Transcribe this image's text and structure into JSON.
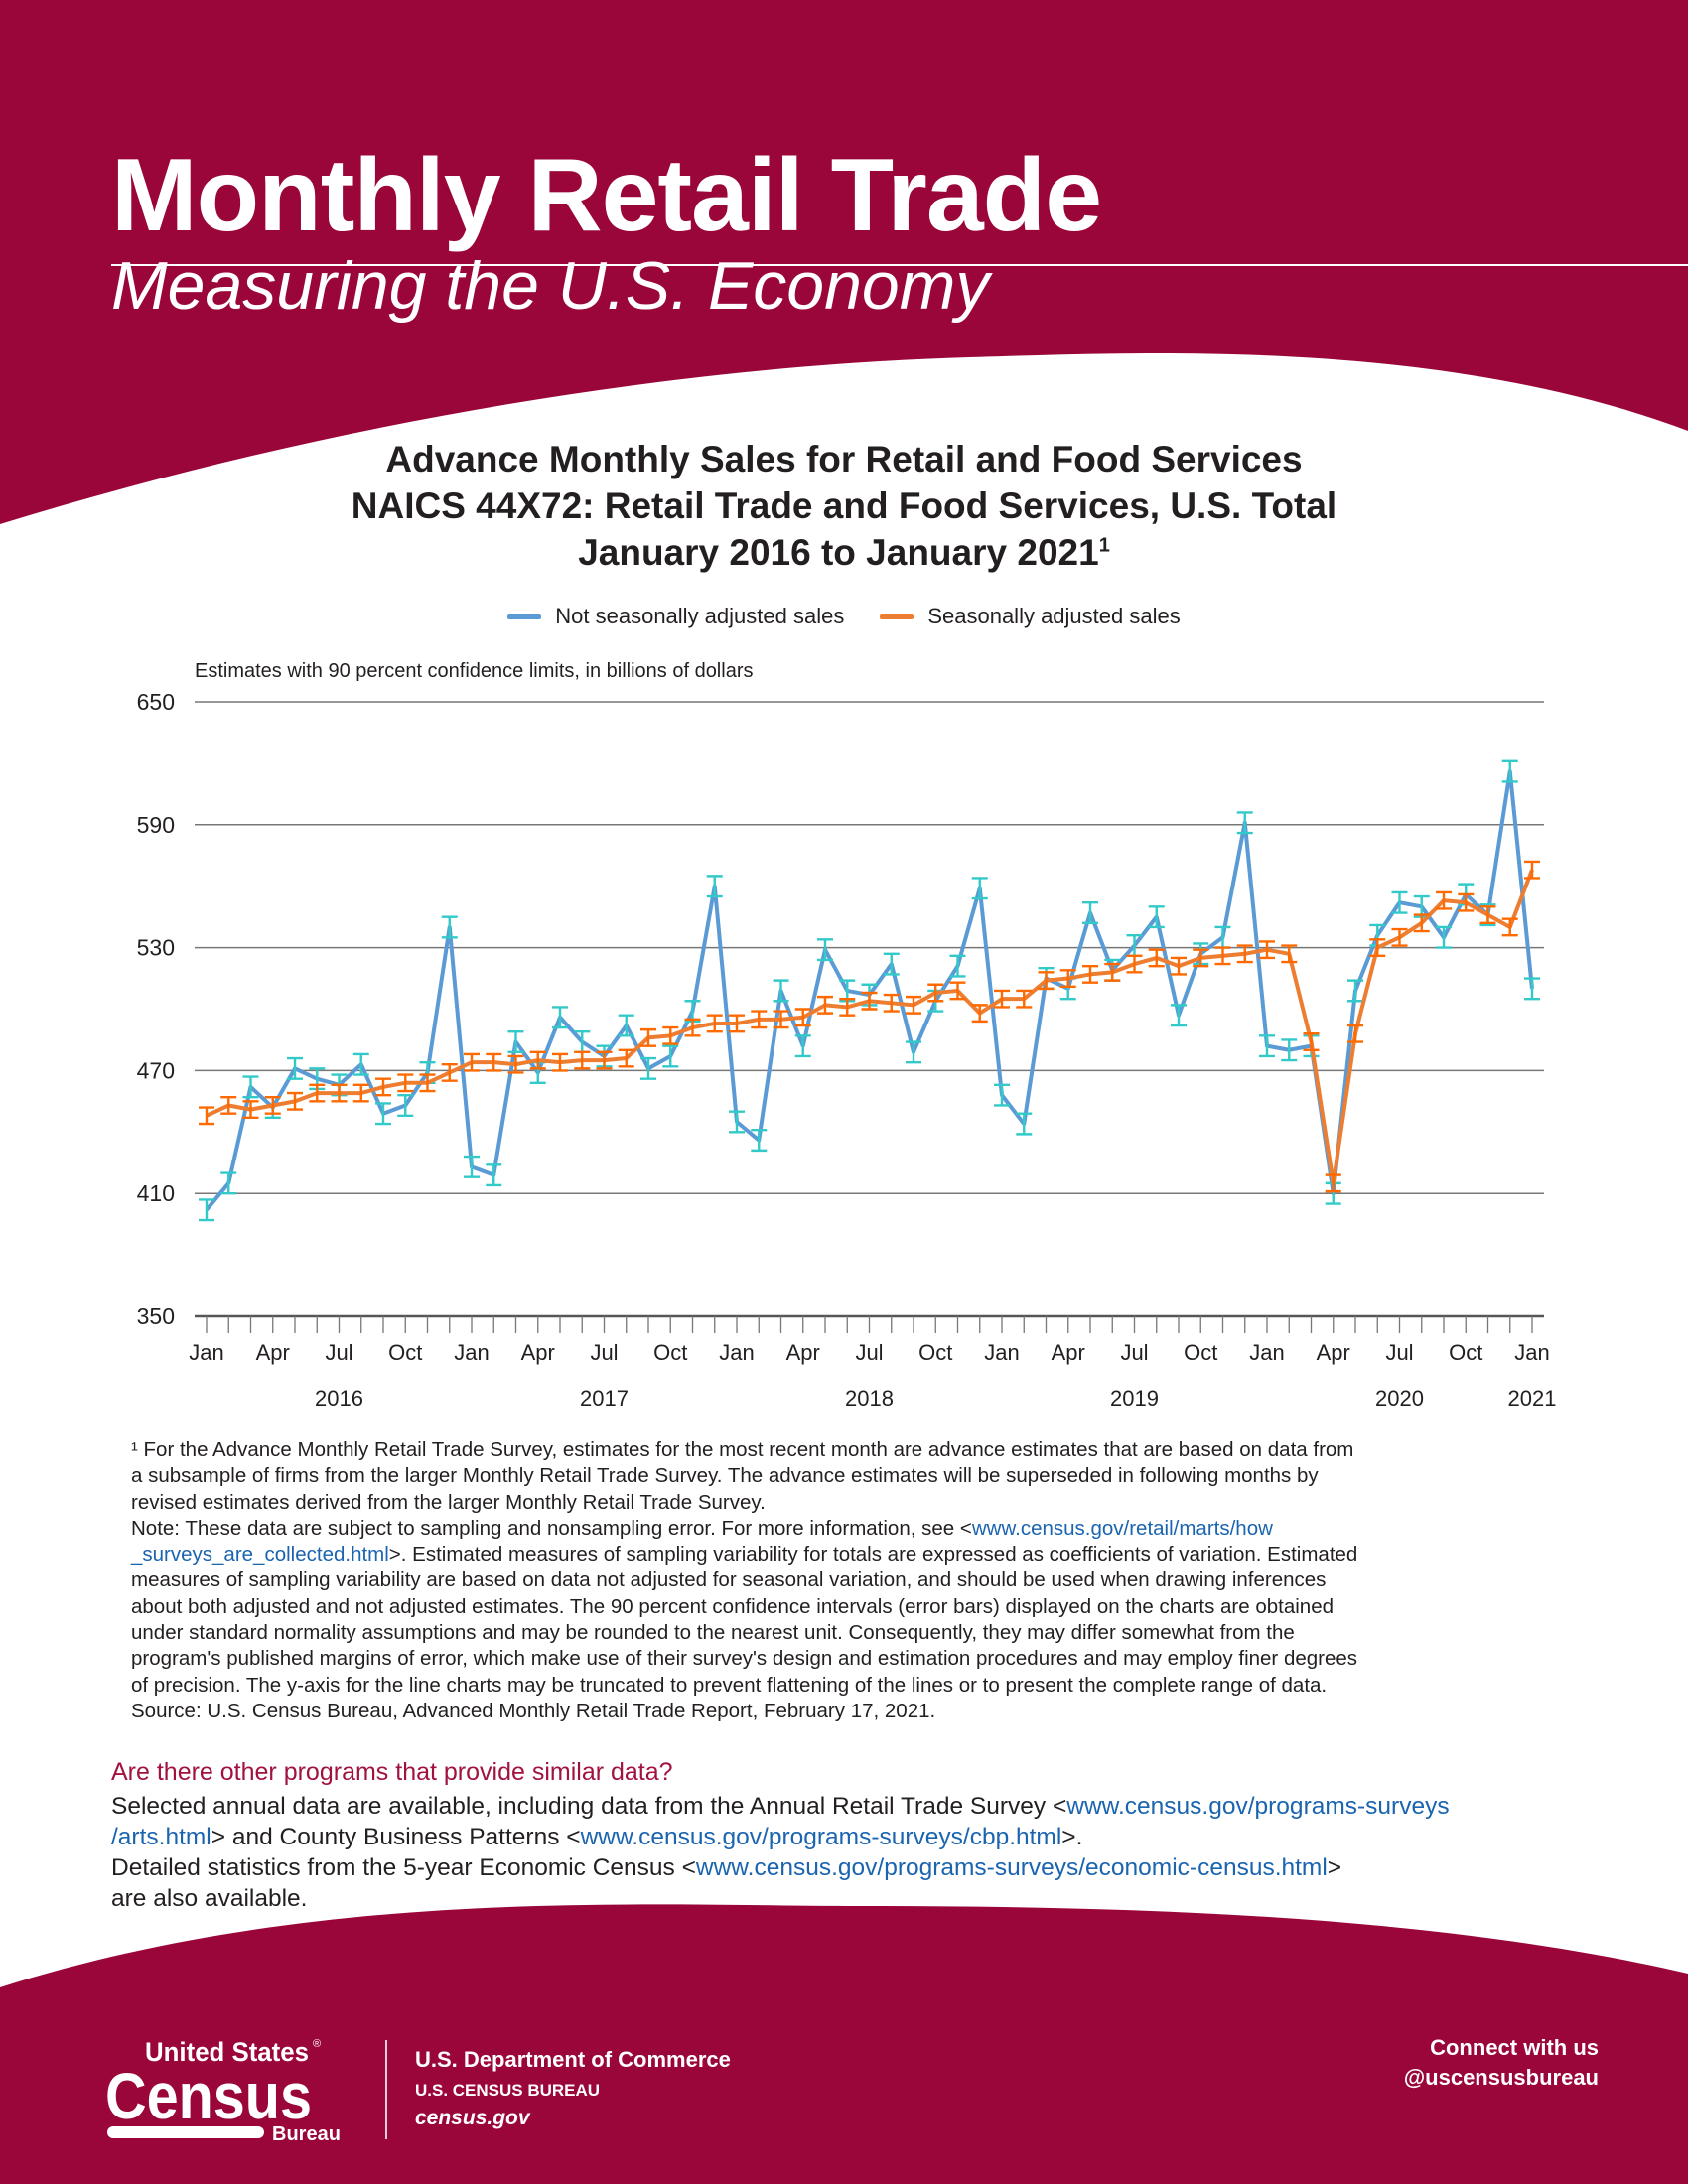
{
  "colors": {
    "brand_red": "#9B063A",
    "nsa_line": "#5B9BD5",
    "nsa_error": "#33C9C9",
    "sa_line": "#ED7D31",
    "sa_error": "#FF6A00",
    "link": "#1A64B0",
    "question": "#A2123F"
  },
  "header": {
    "title": "Monthly Retail Trade",
    "subtitle": "Measuring the U.S. Economy"
  },
  "chart_data": {
    "type": "line",
    "title_lines": [
      "Advance Monthly Sales for Retail and Food Services",
      "NAICS 44X72: Retail Trade and Food Services, U.S. Total",
      "January 2016 to January 2021"
    ],
    "title_footnote_mark": "1",
    "ylabel": "Estimates with 90 percent confidence limits, in billions of dollars",
    "ylim": [
      350,
      650
    ],
    "yticks": [
      "650",
      "590",
      "530",
      "470",
      "410",
      "350"
    ],
    "grid": true,
    "legend_placement": "top-center",
    "x_tick_labels": [
      "Jan",
      "Apr",
      "Jul",
      "Oct",
      "Jan",
      "Apr",
      "Jul",
      "Oct",
      "Jan",
      "Apr",
      "Jul",
      "Oct",
      "Jan",
      "Apr",
      "Jul",
      "Oct",
      "Jan",
      "Apr",
      "Jul",
      "Oct",
      "Jan"
    ],
    "year_labels": [
      "2016",
      "2017",
      "2018",
      "2019",
      "2020",
      "2021"
    ],
    "x_start": "2016-01",
    "x_end": "2021-01",
    "series": [
      {
        "name": "Not seasonally adjusted sales",
        "ci_90_half_width": 5,
        "values": [
          402,
          415,
          462,
          452,
          471,
          466,
          463,
          473,
          449,
          453,
          469,
          540,
          423,
          419,
          484,
          469,
          496,
          484,
          477,
          492,
          471,
          477,
          499,
          560,
          445,
          436,
          509,
          482,
          529,
          509,
          507,
          522,
          479,
          504,
          521,
          559,
          458,
          444,
          515,
          510,
          547,
          519,
          531,
          545,
          497,
          527,
          535,
          591,
          482,
          480,
          482,
          410,
          509,
          536,
          552,
          550,
          535,
          556,
          546,
          616,
          510
        ]
      },
      {
        "name": "Seasonally adjusted sales",
        "ci_90_half_width": 4,
        "values": [
          448,
          453,
          451,
          453,
          455,
          459,
          459,
          459,
          462,
          464,
          464,
          469,
          474,
          474,
          473,
          475,
          474,
          475,
          475,
          476,
          486,
          487,
          491,
          493,
          493,
          495,
          495,
          496,
          502,
          501,
          504,
          503,
          502,
          508,
          509,
          498,
          505,
          505,
          514,
          515,
          517,
          518,
          522,
          525,
          521,
          525,
          526,
          527,
          529,
          527,
          484,
          415,
          488,
          530,
          535,
          542,
          553,
          552,
          546,
          540,
          568
        ]
      }
    ]
  },
  "footnote": {
    "lines": [
      [
        {
          "t": "¹ For the Advance Monthly Retail Trade Survey, estimates for the most recent month are advance estimates that are based on data from"
        }
      ],
      [
        {
          "t": "a subsample of firms from the larger Monthly Retail Trade Survey. The advance estimates will be superseded in following months by"
        }
      ],
      [
        {
          "t": "revised estimates derived from the larger Monthly Retail Trade Survey."
        }
      ],
      [
        {
          "t": "Note: These data are subject to sampling and nonsampling error. For more information, see <"
        },
        {
          "t": "www.census.gov/retail/marts/how",
          "link": true
        }
      ],
      [
        {
          "t": "_surveys_are_collected.html",
          "link": true
        },
        {
          "t": ">. Estimated measures of sampling variability for totals are expressed as coefficients of variation. Estimated"
        }
      ],
      [
        {
          "t": "measures of sampling variability are based on data not adjusted for seasonal variation, and should be used when drawing inferences"
        }
      ],
      [
        {
          "t": "about both adjusted and not adjusted estimates. The 90 percent confidence intervals (error bars) displayed on the charts are obtained"
        }
      ],
      [
        {
          "t": "under standard normality assumptions and may be rounded to the nearest unit. Consequently, they may differ somewhat from the"
        }
      ],
      [
        {
          "t": "program's published margins of error, which make use of their survey's design and estimation procedures and may employ finer degrees"
        }
      ],
      [
        {
          "t": "of precision. The y-axis for the line charts may be truncated to prevent flattening of the lines or to present the complete range of data."
        }
      ],
      [
        {
          "t": "Source: U.S. Census Bureau, Advanced Monthly Retail Trade Report, February 17, 2021."
        }
      ]
    ]
  },
  "other_programs": {
    "question": "Are there other programs that provide similar data?",
    "lines": [
      [
        {
          "t": "Selected annual data are available, including data from the Annual Retail Trade Survey <"
        },
        {
          "t": "www.census.gov/programs-surveys",
          "link": true
        }
      ],
      [
        {
          "t": "/arts.html",
          "link": true
        },
        {
          "t": "> and County Business Patterns <"
        },
        {
          "t": "www.census.gov/programs-surveys/cbp.html",
          "link": true
        },
        {
          "t": ">."
        }
      ],
      [
        {
          "t": "Detailed statistics from the 5-year Economic Census <"
        },
        {
          "t": "www.census.gov/programs-surveys/economic-census.html",
          "link": true
        },
        {
          "t": ">"
        }
      ],
      [
        {
          "t": "are also available."
        }
      ]
    ]
  },
  "footer": {
    "logo": {
      "line1": "United States",
      "line2": "Census",
      "line3": "Bureau",
      "mark": "®"
    },
    "dept": "U.S. Department of Commerce",
    "bureau": "U.S. CENSUS BUREAU",
    "site": "census.gov",
    "connect": "Connect with us",
    "handle": "@uscensusbureau"
  }
}
